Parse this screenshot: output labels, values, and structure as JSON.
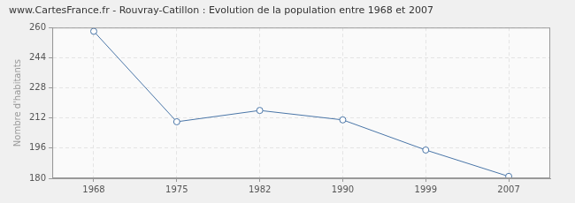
{
  "chart_data": {
    "type": "line",
    "title": "www.CartesFrance.fr - Rouvray-Catillon : Evolution de la population entre 1968 et 2007",
    "y_label": "Nombre d'habitants",
    "categories": [
      "1968",
      "1975",
      "1982",
      "1990",
      "1999",
      "2007"
    ],
    "values": [
      258,
      210,
      216,
      211,
      195,
      181
    ],
    "color": "#4a76a8",
    "marker": "circle",
    "ylim": [
      180,
      260
    ],
    "yticks": [
      180,
      196,
      212,
      228,
      244,
      260
    ],
    "grid": true
  }
}
